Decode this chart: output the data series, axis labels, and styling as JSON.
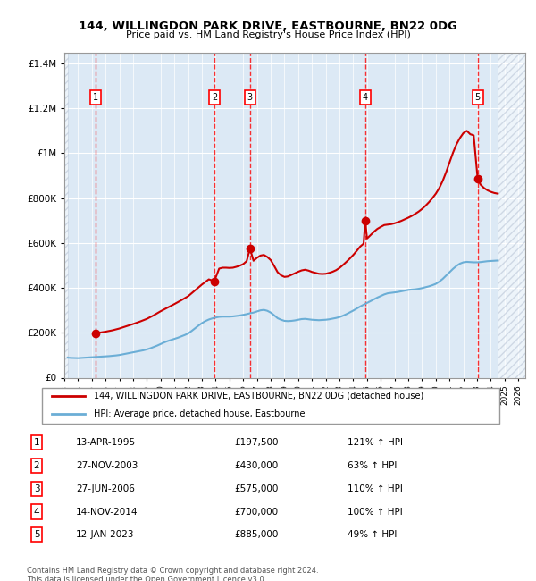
{
  "title": "144, WILLINGDON PARK DRIVE, EASTBOURNE, BN22 0DG",
  "subtitle": "Price paid vs. HM Land Registry's House Price Index (HPI)",
  "ylabel_ticks": [
    "£0",
    "£200K",
    "£400K",
    "£600K",
    "£800K",
    "£1M",
    "£1.2M",
    "£1.4M"
  ],
  "ytick_values": [
    0,
    200000,
    400000,
    600000,
    800000,
    1000000,
    1200000,
    1400000
  ],
  "ylim": [
    0,
    1450000
  ],
  "xlim_start": 1993.0,
  "xlim_end": 2026.5,
  "hpi_color": "#6baed6",
  "price_color": "#cc0000",
  "hatch_color": "#c0c8d8",
  "sale_dates_decimal": [
    1995.28,
    2003.9,
    2006.49,
    2014.87,
    2023.04
  ],
  "sale_prices": [
    197500,
    430000,
    575000,
    700000,
    885000
  ],
  "sale_labels": [
    "1",
    "2",
    "3",
    "4",
    "5"
  ],
  "sale_dates_str": [
    "13-APR-1995",
    "27-NOV-2003",
    "27-JUN-2006",
    "14-NOV-2014",
    "12-JAN-2023"
  ],
  "sale_prices_str": [
    "£197,500",
    "£430,000",
    "£575,000",
    "£700,000",
    "£885,000"
  ],
  "sale_hpi_pct": [
    "121% ↑ HPI",
    "63% ↑ HPI",
    "110% ↑ HPI",
    "100% ↑ HPI",
    "49% ↑ HPI"
  ],
  "legend_label_red": "144, WILLINGDON PARK DRIVE, EASTBOURNE, BN22 0DG (detached house)",
  "legend_label_blue": "HPI: Average price, detached house, Eastbourne",
  "footer": "Contains HM Land Registry data © Crown copyright and database right 2024.\nThis data is licensed under the Open Government Licence v3.0.",
  "hpi_line": {
    "x": [
      1993.25,
      1993.5,
      1993.75,
      1994.0,
      1994.25,
      1994.5,
      1994.75,
      1995.0,
      1995.25,
      1995.5,
      1995.75,
      1996.0,
      1996.25,
      1996.5,
      1996.75,
      1997.0,
      1997.25,
      1997.5,
      1997.75,
      1998.0,
      1998.25,
      1998.5,
      1998.75,
      1999.0,
      1999.25,
      1999.5,
      1999.75,
      2000.0,
      2000.25,
      2000.5,
      2000.75,
      2001.0,
      2001.25,
      2001.5,
      2001.75,
      2002.0,
      2002.25,
      2002.5,
      2002.75,
      2003.0,
      2003.25,
      2003.5,
      2003.75,
      2004.0,
      2004.25,
      2004.5,
      2004.75,
      2005.0,
      2005.25,
      2005.5,
      2005.75,
      2006.0,
      2006.25,
      2006.5,
      2006.75,
      2007.0,
      2007.25,
      2007.5,
      2007.75,
      2008.0,
      2008.25,
      2008.5,
      2008.75,
      2009.0,
      2009.25,
      2009.5,
      2009.75,
      2010.0,
      2010.25,
      2010.5,
      2010.75,
      2011.0,
      2011.25,
      2011.5,
      2011.75,
      2012.0,
      2012.25,
      2012.5,
      2012.75,
      2013.0,
      2013.25,
      2013.5,
      2013.75,
      2014.0,
      2014.25,
      2014.5,
      2014.75,
      2015.0,
      2015.25,
      2015.5,
      2015.75,
      2016.0,
      2016.25,
      2016.5,
      2016.75,
      2017.0,
      2017.25,
      2017.5,
      2017.75,
      2018.0,
      2018.25,
      2018.5,
      2018.75,
      2019.0,
      2019.25,
      2019.5,
      2019.75,
      2020.0,
      2020.25,
      2020.5,
      2020.75,
      2021.0,
      2021.25,
      2021.5,
      2021.75,
      2022.0,
      2022.25,
      2022.5,
      2022.75,
      2023.0,
      2023.25,
      2023.5,
      2023.75,
      2024.0,
      2024.25,
      2024.5
    ],
    "y": [
      89000,
      88000,
      87500,
      87000,
      88000,
      89000,
      90000,
      91000,
      92000,
      93000,
      94000,
      95000,
      96000,
      97500,
      99000,
      101000,
      104000,
      107000,
      110000,
      113000,
      116000,
      119000,
      122000,
      126000,
      131000,
      137000,
      143000,
      150000,
      157000,
      163000,
      168000,
      173000,
      178000,
      184000,
      190000,
      197000,
      208000,
      220000,
      232000,
      243000,
      252000,
      259000,
      264000,
      268000,
      271000,
      272000,
      272000,
      272000,
      273000,
      275000,
      277000,
      280000,
      283000,
      287000,
      290000,
      295000,
      300000,
      302000,
      298000,
      290000,
      278000,
      265000,
      258000,
      253000,
      252000,
      253000,
      255000,
      258000,
      261000,
      262000,
      260000,
      258000,
      257000,
      256000,
      257000,
      258000,
      260000,
      263000,
      266000,
      270000,
      276000,
      283000,
      291000,
      299000,
      308000,
      317000,
      325000,
      333000,
      341000,
      349000,
      357000,
      364000,
      371000,
      376000,
      378000,
      380000,
      382000,
      385000,
      388000,
      391000,
      393000,
      394000,
      396000,
      399000,
      403000,
      407000,
      412000,
      418000,
      428000,
      440000,
      455000,
      470000,
      485000,
      498000,
      508000,
      514000,
      516000,
      515000,
      514000,
      514000,
      515000,
      517000,
      519000,
      520000,
      521000,
      522000
    ]
  },
  "red_line": {
    "x": [
      1995.28,
      1995.5,
      1996.0,
      1996.5,
      1997.0,
      1997.5,
      1998.0,
      1998.5,
      1999.0,
      1999.5,
      2000.0,
      2000.5,
      2001.0,
      2001.5,
      2002.0,
      2002.5,
      2003.0,
      2003.5,
      2003.9,
      2004.25,
      2004.5,
      2004.75,
      2005.0,
      2005.25,
      2005.5,
      2005.75,
      2006.0,
      2006.25,
      2006.49,
      2006.75,
      2007.0,
      2007.25,
      2007.5,
      2007.75,
      2008.0,
      2008.25,
      2008.5,
      2008.75,
      2009.0,
      2009.25,
      2009.5,
      2009.75,
      2010.0,
      2010.25,
      2010.5,
      2010.75,
      2011.0,
      2011.25,
      2011.5,
      2011.75,
      2012.0,
      2012.25,
      2012.5,
      2012.75,
      2013.0,
      2013.25,
      2013.5,
      2013.75,
      2014.0,
      2014.25,
      2014.5,
      2014.75,
      2014.87,
      2015.0,
      2015.25,
      2015.5,
      2015.75,
      2016.0,
      2016.25,
      2016.5,
      2016.75,
      2017.0,
      2017.25,
      2017.5,
      2017.75,
      2018.0,
      2018.25,
      2018.5,
      2018.75,
      2019.0,
      2019.25,
      2019.5,
      2019.75,
      2020.0,
      2020.25,
      2020.5,
      2020.75,
      2021.0,
      2021.25,
      2021.5,
      2021.75,
      2022.0,
      2022.25,
      2022.5,
      2022.75,
      2023.04,
      2023.25,
      2023.5,
      2023.75,
      2024.0,
      2024.25,
      2024.5
    ],
    "y": [
      197500,
      200000,
      205000,
      211000,
      219000,
      229000,
      239000,
      250000,
      262000,
      278000,
      296000,
      312000,
      328000,
      345000,
      363000,
      389000,
      415000,
      438000,
      430000,
      486000,
      490000,
      490000,
      489000,
      490000,
      494000,
      499000,
      506000,
      519000,
      575000,
      521000,
      534000,
      544000,
      547000,
      538000,
      524000,
      498000,
      470000,
      456000,
      449000,
      451000,
      458000,
      465000,
      472000,
      478000,
      481000,
      477000,
      471000,
      467000,
      463000,
      462000,
      463000,
      467000,
      472000,
      479000,
      489000,
      502000,
      516000,
      531000,
      547000,
      565000,
      584000,
      597000,
      700000,
      620000,
      635000,
      650000,
      663000,
      672000,
      680000,
      682000,
      684000,
      688000,
      693000,
      699000,
      706000,
      713000,
      721000,
      730000,
      740000,
      752000,
      766000,
      782000,
      800000,
      820000,
      845000,
      877000,
      916000,
      960000,
      1003000,
      1040000,
      1068000,
      1090000,
      1100000,
      1085000,
      1080000,
      885000,
      860000,
      845000,
      835000,
      828000,
      823000,
      820000
    ]
  }
}
